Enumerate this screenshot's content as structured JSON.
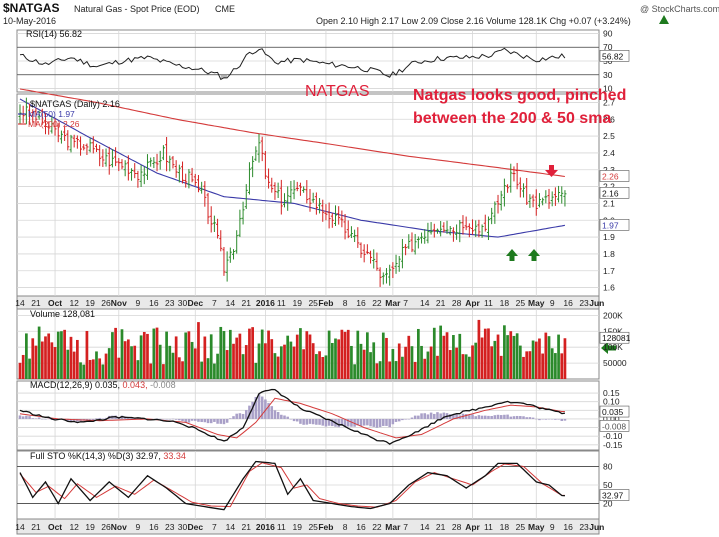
{
  "header": {
    "symbol": "$NATGAS",
    "description": "Natural Gas - Spot Price (EOD)",
    "exchange": "CME",
    "date": "10-May-2016",
    "watermark": "@ StockCharts.com",
    "quote": "Open 2.10  High 2.17  Low 2.09  Close 2.16  Volume 128.1K  Chg +0.07 (+3.24%)",
    "chg_icon": "up-triangle-icon"
  },
  "annotations": {
    "title": "NATGAS",
    "comment_line1": "Natgas looks good, pinched",
    "comment_line2": "between the 200 & 50 sma"
  },
  "legends": {
    "rsi": "RSI(14) 56.82",
    "price": "$NATGAS (Daily) 2.16",
    "ma50": "MA(50) 1.97",
    "ma200": "MA(200) 2.26",
    "volume": "Volume 128,081",
    "macd_a": "MACD(12,26,9) 0.035,",
    "macd_b": " 0.043,",
    "macd_c": " -0.008",
    "sto_a": "Full STO %K(14,3) %D(3) 32.97,",
    "sto_b": " 33.34"
  },
  "colors": {
    "up": "#2b8a2b",
    "down": "#d42020",
    "ma50": "#3a3aa8",
    "ma200": "#d43a3a",
    "annotation": "#e0203a",
    "arrow_green": "#1e7a1e",
    "grid": "#d6d6d6"
  },
  "chart_data": [
    {
      "type": "line",
      "panel": "RSI",
      "series": [
        {
          "name": "RSI(14)",
          "values": [
            56.82
          ]
        }
      ],
      "ticks": [
        "90",
        "70",
        "50",
        "30",
        "10"
      ],
      "ylim": [
        10,
        90
      ],
      "last_label": "56.82"
    },
    {
      "type": "candlestick",
      "panel": "Price",
      "ylim": [
        1.55,
        2.75
      ],
      "ticks": [
        "2.7",
        "2.6",
        "2.5",
        "2.4",
        "2.3",
        "2.2",
        "2.1",
        "2.0",
        "1.9",
        "1.8",
        "1.7",
        "1.6"
      ],
      "anchors": [
        [
          0,
          2.65
        ],
        [
          5,
          2.62
        ],
        [
          9,
          2.55
        ],
        [
          13,
          2.5
        ],
        [
          17,
          2.45
        ],
        [
          21,
          2.45
        ],
        [
          25,
          2.38
        ],
        [
          29,
          2.35
        ],
        [
          33,
          2.33
        ],
        [
          37,
          2.28
        ],
        [
          41,
          2.32
        ],
        [
          45,
          2.4
        ],
        [
          49,
          2.3
        ],
        [
          53,
          2.25
        ],
        [
          57,
          2.15
        ],
        [
          61,
          1.95
        ],
        [
          64,
          1.72
        ],
        [
          67,
          1.85
        ],
        [
          70,
          2.1
        ],
        [
          73,
          2.35
        ],
        [
          75,
          2.45
        ],
        [
          78,
          2.2
        ],
        [
          82,
          2.12
        ],
        [
          86,
          2.18
        ],
        [
          90,
          2.15
        ],
        [
          94,
          2.08
        ],
        [
          98,
          2.02
        ],
        [
          102,
          1.95
        ],
        [
          106,
          1.85
        ],
        [
          110,
          1.78
        ],
        [
          114,
          1.65
        ],
        [
          117,
          1.7
        ],
        [
          120,
          1.8
        ],
        [
          124,
          1.88
        ],
        [
          128,
          1.95
        ],
        [
          132,
          1.98
        ],
        [
          136,
          1.95
        ],
        [
          140,
          2.0
        ],
        [
          144,
          1.95
        ],
        [
          148,
          2.02
        ],
        [
          152,
          2.2
        ],
        [
          155,
          2.28
        ],
        [
          158,
          2.15
        ],
        [
          162,
          2.1
        ],
        [
          166,
          2.12
        ],
        [
          170,
          2.16
        ]
      ],
      "series": [
        {
          "name": "MA(50)",
          "values": [
            2.72,
            2.5,
            2.28,
            2.14,
            2.1,
            2.0,
            1.94,
            1.9,
            1.97
          ]
        },
        {
          "name": "MA(200)",
          "values": [
            2.78,
            2.7,
            2.6,
            2.52,
            2.45,
            2.38,
            2.32,
            2.26
          ]
        }
      ],
      "last_price": "2.16",
      "last_ma200": "2.26",
      "last_ma50": "1.97"
    },
    {
      "type": "bar",
      "panel": "Volume",
      "ticks": [
        "200K",
        "150K",
        "100K",
        "50000"
      ],
      "ylim": [
        0,
        220000
      ],
      "last_value": "128081"
    },
    {
      "type": "line",
      "panel": "MACD",
      "ylim": [
        -0.18,
        0.22
      ],
      "ticks": [
        "0.15",
        "0.10",
        "0.05",
        "0.00",
        "-0.05",
        "-0.10",
        "-0.15"
      ],
      "series": [
        {
          "name": "MACD(12,26,9)",
          "anchors": [
            [
              0,
              0.05
            ],
            [
              10,
              0.0
            ],
            [
              20,
              -0.02
            ],
            [
              30,
              0.01
            ],
            [
              40,
              0.0
            ],
            [
              50,
              -0.02
            ],
            [
              58,
              -0.08
            ],
            [
              64,
              -0.13
            ],
            [
              70,
              -0.05
            ],
            [
              75,
              0.15
            ],
            [
              80,
              0.17
            ],
            [
              88,
              0.06
            ],
            [
              96,
              0.0
            ],
            [
              104,
              -0.06
            ],
            [
              112,
              -0.12
            ],
            [
              116,
              -0.14
            ],
            [
              124,
              -0.08
            ],
            [
              134,
              0.02
            ],
            [
              144,
              0.06
            ],
            [
              152,
              0.1
            ],
            [
              158,
              0.09
            ],
            [
              164,
              0.06
            ],
            [
              170,
              0.035
            ]
          ]
        },
        {
          "name": "Signal",
          "anchors": [
            [
              0,
              0.03
            ],
            [
              12,
              0.0
            ],
            [
              25,
              -0.01
            ],
            [
              40,
              0.0
            ],
            [
              52,
              -0.02
            ],
            [
              62,
              -0.09
            ],
            [
              68,
              -0.11
            ],
            [
              74,
              -0.02
            ],
            [
              80,
              0.12
            ],
            [
              88,
              0.09
            ],
            [
              98,
              0.03
            ],
            [
              108,
              -0.05
            ],
            [
              118,
              -0.11
            ],
            [
              126,
              -0.09
            ],
            [
              136,
              0.0
            ],
            [
              146,
              0.05
            ],
            [
              154,
              0.08
            ],
            [
              162,
              0.07
            ],
            [
              170,
              0.043
            ]
          ]
        }
      ],
      "last_macd": "0.035",
      "last_hist": "-0.008"
    },
    {
      "type": "line",
      "panel": "Full STO",
      "ylim": [
        0,
        100
      ],
      "ticks": [
        "80",
        "50",
        "20"
      ],
      "series": [
        {
          "name": "%K",
          "anchors": [
            [
              0,
              70
            ],
            [
              4,
              30
            ],
            [
              8,
              55
            ],
            [
              12,
              20
            ],
            [
              16,
              60
            ],
            [
              22,
              25
            ],
            [
              28,
              55
            ],
            [
              34,
              30
            ],
            [
              40,
              65
            ],
            [
              46,
              45
            ],
            [
              52,
              20
            ],
            [
              58,
              15
            ],
            [
              64,
              10
            ],
            [
              70,
              60
            ],
            [
              74,
              88
            ],
            [
              80,
              85
            ],
            [
              84,
              35
            ],
            [
              88,
              60
            ],
            [
              92,
              25
            ],
            [
              98,
              20
            ],
            [
              104,
              15
            ],
            [
              110,
              12
            ],
            [
              116,
              20
            ],
            [
              122,
              50
            ],
            [
              128,
              70
            ],
            [
              134,
              65
            ],
            [
              140,
              45
            ],
            [
              146,
              65
            ],
            [
              150,
              85
            ],
            [
              156,
              85
            ],
            [
              162,
              55
            ],
            [
              166,
              50
            ],
            [
              170,
              32.97
            ]
          ]
        },
        {
          "name": "%D",
          "anchors": [
            [
              0,
              68
            ],
            [
              5,
              38
            ],
            [
              9,
              48
            ],
            [
              14,
              28
            ],
            [
              18,
              52
            ],
            [
              24,
              30
            ],
            [
              30,
              48
            ],
            [
              36,
              35
            ],
            [
              42,
              58
            ],
            [
              48,
              40
            ],
            [
              54,
              22
            ],
            [
              60,
              16
            ],
            [
              66,
              15
            ],
            [
              72,
              72
            ],
            [
              76,
              86
            ],
            [
              82,
              78
            ],
            [
              86,
              45
            ],
            [
              90,
              50
            ],
            [
              94,
              28
            ],
            [
              100,
              20
            ],
            [
              106,
              16
            ],
            [
              112,
              14
            ],
            [
              118,
              25
            ],
            [
              124,
              55
            ],
            [
              130,
              70
            ],
            [
              136,
              60
            ],
            [
              142,
              50
            ],
            [
              148,
              72
            ],
            [
              152,
              84
            ],
            [
              158,
              80
            ],
            [
              164,
              52
            ],
            [
              170,
              33.34
            ]
          ]
        }
      ],
      "last_k": "32.97",
      "last_d": "33.34"
    }
  ],
  "x_axis": {
    "n": 172,
    "labels": [
      {
        "i": 0,
        "t": "14"
      },
      {
        "i": 5,
        "t": "21"
      },
      {
        "i": 11,
        "t": "Oct"
      },
      {
        "i": 17,
        "t": "12"
      },
      {
        "i": 22,
        "t": "19"
      },
      {
        "i": 27,
        "t": "26"
      },
      {
        "i": 31,
        "t": "Nov"
      },
      {
        "i": 37,
        "t": "9"
      },
      {
        "i": 42,
        "t": "16"
      },
      {
        "i": 47,
        "t": "23"
      },
      {
        "i": 51,
        "t": "30"
      },
      {
        "i": 55,
        "t": "Dec"
      },
      {
        "i": 61,
        "t": "7"
      },
      {
        "i": 66,
        "t": "14"
      },
      {
        "i": 71,
        "t": "21"
      },
      {
        "i": 77,
        "t": "2016"
      },
      {
        "i": 82,
        "t": "11"
      },
      {
        "i": 87,
        "t": "19"
      },
      {
        "i": 92,
        "t": "25"
      },
      {
        "i": 96,
        "t": "Feb"
      },
      {
        "i": 102,
        "t": "8"
      },
      {
        "i": 107,
        "t": "16"
      },
      {
        "i": 112,
        "t": "22"
      },
      {
        "i": 117,
        "t": "Mar"
      },
      {
        "i": 121,
        "t": "7"
      },
      {
        "i": 127,
        "t": "14"
      },
      {
        "i": 132,
        "t": "21"
      },
      {
        "i": 137,
        "t": "28"
      },
      {
        "i": 142,
        "t": "Apr"
      },
      {
        "i": 147,
        "t": "11"
      },
      {
        "i": 152,
        "t": "18"
      },
      {
        "i": 157,
        "t": "25"
      },
      {
        "i": 162,
        "t": "May"
      },
      {
        "i": 167,
        "t": "9"
      },
      {
        "i": 172,
        "t": "16"
      },
      {
        "i": 177,
        "t": "23"
      },
      {
        "i": 181,
        "t": "Jun"
      }
    ]
  }
}
